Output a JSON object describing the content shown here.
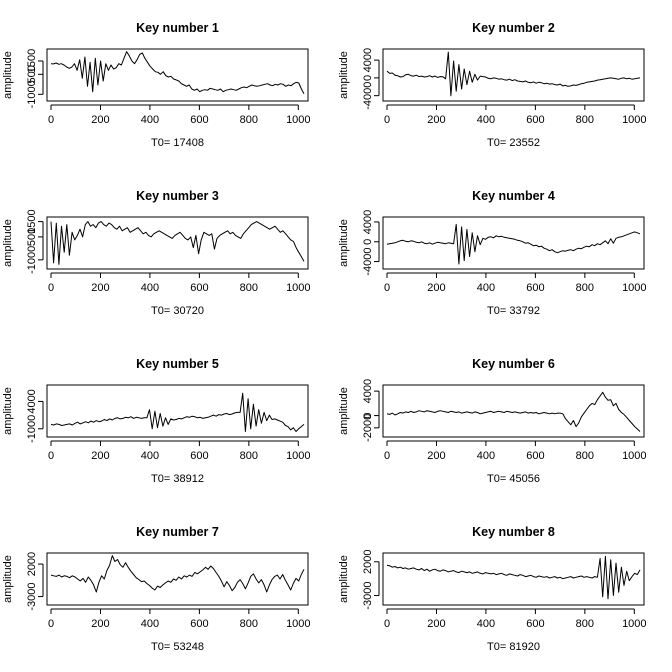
{
  "chart_data": [
    {
      "type": "line",
      "title": "Key number 1",
      "xlabel": "T0= 17408",
      "ylabel": "amplitude",
      "xlim": [
        0,
        1023
      ],
      "ylim": [
        -1500,
        2400
      ],
      "xticks": [
        0,
        200,
        400,
        600,
        800,
        1000
      ],
      "yticks": [
        -1000,
        500,
        1500
      ],
      "series": [
        {
          "color": "#000000",
          "values": [
            1300,
            1280,
            1350,
            1250,
            1300,
            1200,
            1050,
            950,
            1050,
            1300,
            800,
            1600,
            200,
            1800,
            -400,
            1400,
            -800,
            1700,
            -300,
            1500,
            0,
            1300,
            800,
            1200,
            900,
            1000,
            1300,
            1200,
            1700,
            2200,
            1900,
            1500,
            1300,
            1600,
            2000,
            2100,
            1700,
            1400,
            1100,
            900,
            700,
            650,
            500,
            700,
            400,
            300,
            350,
            150,
            80,
            0,
            -200,
            -300,
            -400,
            -300,
            -600,
            -700,
            -600,
            -800,
            -700,
            -650,
            -700,
            -550,
            -600,
            -650,
            -700,
            -600,
            -800,
            -700,
            -650,
            -600,
            -650,
            -700,
            -600,
            -500,
            -450,
            -500,
            -400,
            -300,
            -350,
            -400,
            -350,
            -300,
            -250,
            -200,
            -300,
            -350,
            -250,
            -300,
            -200,
            -250,
            -400,
            -300,
            -350,
            -200,
            -100,
            -150,
            -600,
            -950
          ]
        }
      ]
    },
    {
      "type": "line",
      "title": "Key number 2",
      "xlabel": "T0= 23552",
      "ylabel": "amplitude",
      "xlim": [
        0,
        1023
      ],
      "ylim": [
        -5200,
        6500
      ],
      "xticks": [
        0,
        200,
        400,
        600,
        800,
        1000
      ],
      "yticks": [
        -4000,
        0,
        4000
      ],
      "series": [
        {
          "color": "#000000",
          "values": [
            1500,
            1000,
            1100,
            600,
            500,
            200,
            300,
            700,
            800,
            500,
            400,
            600,
            300,
            400,
            200,
            300,
            500,
            200,
            400,
            100,
            300,
            250,
            -200,
            5800,
            -4000,
            3800,
            -3000,
            3000,
            -2500,
            2000,
            -1500,
            1500,
            -1000,
            800,
            -500,
            400,
            300,
            200,
            -100,
            -200,
            0,
            -100,
            -300,
            -200,
            -400,
            -500,
            -300,
            -600,
            -400,
            -700,
            -800,
            -900,
            -700,
            -1000,
            -1100,
            -900,
            -1200,
            -1000,
            -1100,
            -1300,
            -1200,
            -1400,
            -1300,
            -1500,
            -1600,
            -1400,
            -1800,
            -1700,
            -1900,
            -1800,
            -1600,
            -1700,
            -1500,
            -1300,
            -1200,
            -1000,
            -900,
            -800,
            -700,
            -500,
            -400,
            -300,
            -200,
            -100,
            0,
            -100,
            -200,
            -300,
            -100,
            0,
            -200,
            -100,
            -300,
            -200,
            -100,
            0
          ]
        }
      ]
    },
    {
      "type": "line",
      "title": "Key number 3",
      "xlabel": "T0= 30720",
      "ylabel": "amplitude",
      "xlim": [
        0,
        1023
      ],
      "ylim": [
        -1600,
        1800
      ],
      "xticks": [
        0,
        200,
        400,
        600,
        800,
        1000
      ],
      "yticks": [
        -1000,
        500,
        1500
      ],
      "series": [
        {
          "color": "#000000",
          "values": [
            1500,
            -1200,
            1400,
            -1300,
            1200,
            -500,
            1300,
            -700,
            800,
            300,
            600,
            1000,
            500,
            1300,
            1500,
            1200,
            1300,
            1100,
            1400,
            1500,
            1300,
            1200,
            1400,
            1300,
            1100,
            1000,
            1200,
            900,
            1000,
            1100,
            800,
            900,
            1000,
            1100,
            900,
            700,
            800,
            600,
            500,
            700,
            800,
            900,
            800,
            700,
            600,
            500,
            400,
            600,
            700,
            800,
            600,
            400,
            300,
            500,
            -200,
            600,
            -600,
            300,
            800,
            700,
            600,
            700,
            -300,
            400,
            600,
            700,
            800,
            900,
            700,
            800,
            600,
            500,
            400,
            700,
            900,
            1100,
            1300,
            1400,
            1500,
            1400,
            1300,
            1200,
            1100,
            1000,
            1100,
            1200,
            1000,
            800,
            900,
            700,
            500,
            300,
            200,
            -200,
            -500,
            -800,
            -1100
          ]
        }
      ]
    },
    {
      "type": "line",
      "title": "Key number 4",
      "xlabel": "T0= 33792",
      "ylabel": "amplitude",
      "xlim": [
        0,
        1023
      ],
      "ylim": [
        -5500,
        5000
      ],
      "xticks": [
        0,
        200,
        400,
        600,
        800,
        1000
      ],
      "yticks": [
        -4000,
        0,
        4000
      ],
      "series": [
        {
          "color": "#000000",
          "values": [
            -500,
            -400,
            -300,
            -200,
            0,
            200,
            300,
            100,
            0,
            200,
            100,
            -100,
            -200,
            0,
            -300,
            -400,
            -200,
            -500,
            -300,
            -100,
            -200,
            -300,
            -400,
            -200,
            -300,
            -400,
            3500,
            -4500,
            3000,
            -3800,
            2500,
            -3000,
            1800,
            -2000,
            1200,
            -600,
            700,
            500,
            900,
            1000,
            800,
            1200,
            1000,
            1100,
            900,
            800,
            700,
            600,
            500,
            300,
            200,
            0,
            -300,
            -200,
            -500,
            -800,
            -700,
            -1000,
            -900,
            -1300,
            -1500,
            -1800,
            -1600,
            -2000,
            -2200,
            -2000,
            -1800,
            -1900,
            -1700,
            -1600,
            -1800,
            -1500,
            -1300,
            -1400,
            -1100,
            -900,
            -1000,
            -600,
            -800,
            -400,
            -600,
            -200,
            200,
            -400,
            600,
            -300,
            700,
            900,
            1000,
            1200,
            1400,
            1600,
            1800,
            2000,
            1800,
            1600
          ]
        }
      ]
    },
    {
      "type": "line",
      "title": "Key number 5",
      "xlabel": "T0= 38912",
      "ylabel": "amplitude",
      "xlim": [
        0,
        1023
      ],
      "ylim": [
        -2500,
        7000
      ],
      "xticks": [
        0,
        200,
        400,
        600,
        800,
        1000
      ],
      "yticks": [
        -1000,
        4000
      ],
      "series": [
        {
          "color": "#000000",
          "values": [
            -200,
            -300,
            -100,
            -200,
            -400,
            -300,
            -200,
            -100,
            -300,
            0,
            200,
            -100,
            100,
            300,
            100,
            400,
            200,
            500,
            300,
            400,
            700,
            500,
            800,
            600,
            900,
            1000,
            800,
            900,
            1100,
            1000,
            1200,
            900,
            1100,
            1000,
            900,
            1000,
            1000,
            2500,
            -1000,
            2200,
            -800,
            1800,
            -500,
            1000,
            -200,
            800,
            600,
            700,
            900,
            800,
            1000,
            1200,
            1100,
            1300,
            1200,
            1000,
            1100,
            900,
            1000,
            1100,
            1300,
            1500,
            1300,
            1600,
            1500,
            1700,
            1800,
            1600,
            1700,
            1900,
            2000,
            2000,
            5500,
            -1500,
            4500,
            -1000,
            3500,
            -500,
            2500,
            0,
            2000,
            500,
            1500,
            700,
            800,
            600,
            400,
            200,
            -400,
            -600,
            -1200,
            -800,
            -1500,
            -1000,
            -600,
            -200
          ]
        }
      ]
    },
    {
      "type": "line",
      "title": "Key number 6",
      "xlabel": "T0= 45056",
      "ylabel": "amplitude",
      "xlim": [
        0,
        1023
      ],
      "ylim": [
        -3500,
        5000
      ],
      "xticks": [
        0,
        200,
        400,
        600,
        800,
        1000
      ],
      "yticks": [
        -2000,
        0,
        4000
      ],
      "series": [
        {
          "color": "#000000",
          "values": [
            300,
            200,
            400,
            100,
            300,
            500,
            400,
            600,
            500,
            700,
            500,
            600,
            800,
            700,
            600,
            800,
            700,
            600,
            500,
            700,
            800,
            700,
            600,
            500,
            700,
            600,
            500,
            600,
            400,
            500,
            600,
            500,
            400,
            600,
            500,
            300,
            400,
            500,
            600,
            700,
            500,
            600,
            700,
            600,
            500,
            700,
            600,
            500,
            600,
            500,
            400,
            500,
            600,
            400,
            500,
            400,
            500,
            300,
            400,
            500,
            400,
            300,
            400,
            300,
            400,
            400,
            300,
            -500,
            -1000,
            -1500,
            -800,
            -1800,
            -1200,
            -200,
            400,
            1000,
            1600,
            2000,
            1800,
            2600,
            3200,
            3800,
            3000,
            2500,
            2600,
            1600,
            2000,
            1000,
            500,
            200,
            -300,
            -800,
            -1300,
            -1800,
            -2200,
            -2600
          ]
        }
      ]
    },
    {
      "type": "line",
      "title": "Key number 7",
      "xlabel": "T0= 53248",
      "ylabel": "amplitude",
      "xlim": [
        0,
        1023
      ],
      "ylim": [
        -4300,
        3700
      ],
      "xticks": [
        0,
        200,
        400,
        600,
        800,
        1000
      ],
      "yticks": [
        -3000,
        2000
      ],
      "series": [
        {
          "color": "#000000",
          "values": [
            300,
            200,
            100,
            300,
            0,
            200,
            100,
            -100,
            200,
            0,
            -300,
            -600,
            -200,
            -800,
            0,
            -500,
            -1200,
            -2300,
            -800,
            200,
            -300,
            1000,
            1800,
            3300,
            2400,
            2700,
            1900,
            1500,
            2200,
            1500,
            900,
            400,
            -100,
            -400,
            -700,
            -600,
            -1000,
            -1300,
            -1700,
            -2000,
            -1400,
            -1600,
            -1200,
            -900,
            -600,
            -800,
            -300,
            -500,
            0,
            -300,
            200,
            0,
            300,
            100,
            700,
            500,
            800,
            1100,
            1500,
            1200,
            1700,
            1300,
            700,
            100,
            -600,
            -1500,
            -700,
            -1300,
            -2100,
            -1600,
            -800,
            -400,
            -1000,
            -1800,
            -900,
            100,
            500,
            -300,
            -900,
            -400,
            -1200,
            -2300,
            -1200,
            -400,
            100,
            300,
            -300,
            400,
            -500,
            -1200,
            -2000,
            -1000,
            -200,
            -600,
            400,
            1200
          ]
        }
      ]
    },
    {
      "type": "line",
      "title": "Key number 8",
      "xlabel": "T0= 81920",
      "ylabel": "amplitude",
      "xlim": [
        0,
        1023
      ],
      "ylim": [
        -4400,
        3300
      ],
      "xticks": [
        0,
        200,
        400,
        600,
        800,
        1000
      ],
      "yticks": [
        -3000,
        2000
      ],
      "series": [
        {
          "color": "#000000",
          "values": [
            1500,
            1400,
            1200,
            1300,
            1100,
            1200,
            1000,
            1100,
            900,
            1000,
            1100,
            900,
            800,
            1000,
            700,
            900,
            600,
            800,
            900,
            700,
            600,
            800,
            700,
            500,
            600,
            700,
            500,
            400,
            600,
            500,
            400,
            500,
            300,
            400,
            500,
            300,
            200,
            400,
            300,
            200,
            300,
            100,
            200,
            300,
            100,
            0,
            200,
            100,
            0,
            -100,
            100,
            0,
            -200,
            -100,
            0,
            -200,
            -300,
            -100,
            -200,
            -300,
            -200,
            -400,
            -300,
            -200,
            -400,
            -300,
            -500,
            -400,
            -300,
            -200,
            -400,
            -300,
            -200,
            -100,
            -300,
            -200,
            -300,
            -400,
            -200,
            -300,
            2500,
            -3200,
            2800,
            -3500,
            2300,
            -3000,
            1800,
            -2500,
            1200,
            -1500,
            600,
            -800,
            -200,
            300,
            100,
            800
          ]
        }
      ]
    }
  ]
}
